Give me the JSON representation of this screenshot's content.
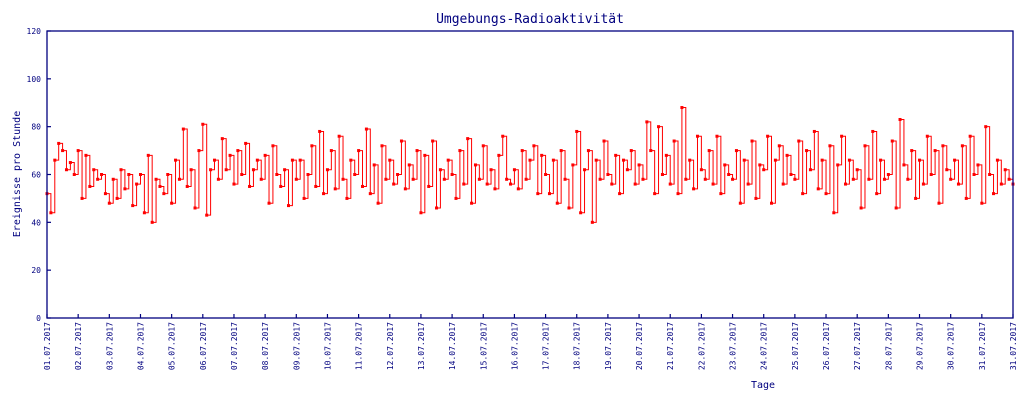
{
  "chart_data": {
    "type": "line",
    "style": "step",
    "title": "Umgebungs-Radioaktivität",
    "xlabel": "Tage",
    "ylabel": "Ereignisse pro Stunde",
    "ylim": [
      0,
      120
    ],
    "yticks": [
      0,
      20,
      40,
      60,
      80,
      100,
      120
    ],
    "xtick_labels": [
      "01.07.2017",
      "02.07.2017",
      "03.07.2017",
      "04.07.2017",
      "05.07.2017",
      "06.07.2017",
      "07.07.2017",
      "08.07.2017",
      "09.07.2017",
      "10.07.2017",
      "11.07.2017",
      "12.07.2017",
      "13.07.2017",
      "14.07.2017",
      "15.07.2017",
      "16.07.2017",
      "17.07.2017",
      "18.07.2017",
      "19.07.2017",
      "20.07.2017",
      "21.07.2017",
      "22.07.2017",
      "23.07.2017",
      "24.07.2017",
      "25.07.2017",
      "26.07.2017",
      "27.07.2017",
      "28.07.2017",
      "29.07.2017",
      "30.07.2017",
      "31.07.2017",
      "31.07.2017"
    ],
    "x_unit": "days since 01.07.2017 (3-hour samples, approximate)",
    "grid": false,
    "colors": {
      "axis": "#00007f",
      "series": "#ff0000"
    },
    "series": [
      {
        "name": "Ereignisse pro Stunde",
        "values": [
          52,
          44,
          66,
          73,
          70,
          62,
          65,
          60,
          70,
          50,
          68,
          55,
          62,
          58,
          60,
          52,
          48,
          58,
          50,
          62,
          54,
          60,
          47,
          56,
          60,
          44,
          68,
          40,
          58,
          55,
          52,
          60,
          48,
          66,
          58,
          79,
          55,
          62,
          46,
          70,
          81,
          43,
          62,
          66,
          58,
          75,
          62,
          68,
          56,
          70,
          60,
          73,
          55,
          62,
          66,
          58,
          68,
          48,
          72,
          60,
          55,
          62,
          47,
          66,
          58,
          66,
          50,
          60,
          72,
          55,
          78,
          52,
          62,
          70,
          54,
          76,
          58,
          50,
          66,
          60,
          70,
          55,
          79,
          52,
          64,
          48,
          72,
          58,
          66,
          56,
          60,
          74,
          54,
          64,
          58,
          70,
          44,
          68,
          55,
          74,
          46,
          62,
          58,
          66,
          60,
          50,
          70,
          56,
          75,
          48,
          64,
          58,
          72,
          56,
          62,
          54,
          68,
          76,
          58,
          56,
          62,
          54,
          70,
          58,
          66,
          72,
          52,
          68,
          60,
          52,
          66,
          48,
          70,
          58,
          46,
          64,
          78,
          44,
          62,
          70,
          40,
          66,
          58,
          74,
          60,
          56,
          68,
          52,
          66,
          62,
          70,
          56,
          64,
          58,
          82,
          70,
          52,
          80,
          60,
          68,
          56,
          74,
          52,
          88,
          58,
          66,
          54,
          76,
          62,
          58,
          70,
          56,
          76,
          52,
          64,
          60,
          58,
          70,
          48,
          66,
          56,
          74,
          50,
          64,
          62,
          76,
          48,
          66,
          72,
          56,
          68,
          60,
          58,
          74,
          52,
          70,
          62,
          78,
          54,
          66,
          52,
          72,
          44,
          64,
          76,
          56,
          66,
          58,
          62,
          46,
          72,
          58,
          78,
          52,
          66,
          58,
          60,
          74,
          46,
          83,
          64,
          58,
          70,
          50,
          66,
          56,
          76,
          60,
          70,
          48,
          72,
          62,
          58,
          66,
          56,
          72,
          50,
          76,
          60,
          64,
          48,
          80,
          60,
          52,
          66,
          56,
          62,
          58,
          56
        ]
      }
    ]
  }
}
